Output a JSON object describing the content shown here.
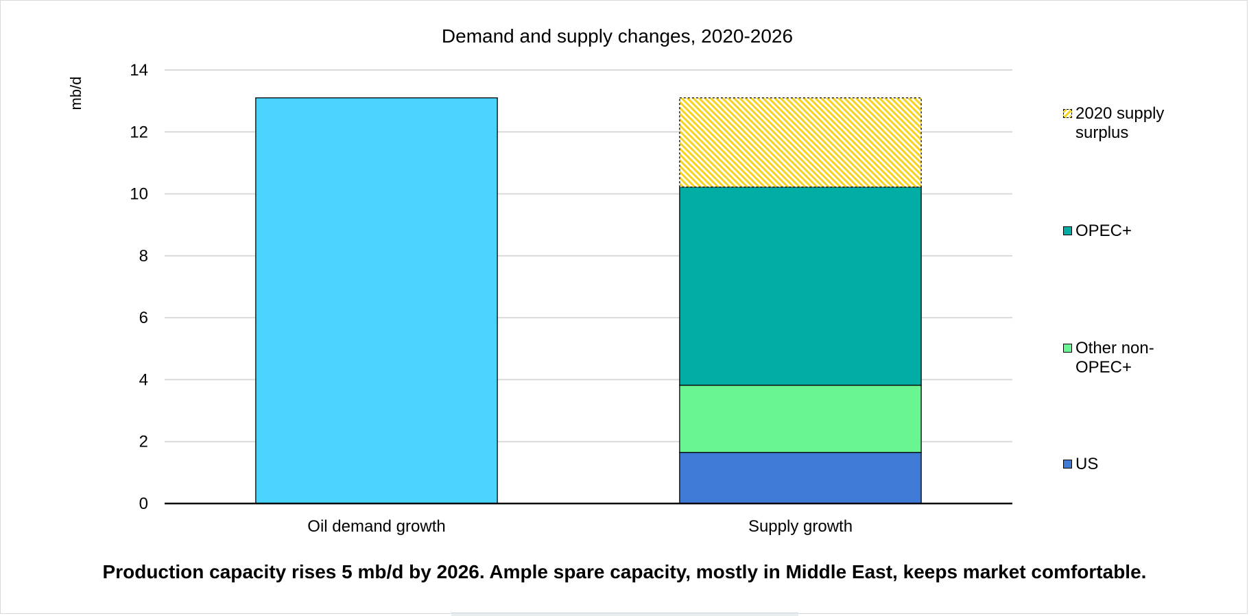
{
  "chart_data": {
    "type": "bar",
    "stacked": true,
    "title": "Demand and supply changes, 2020-2026",
    "ylabel": "mb/d",
    "xlabel": "",
    "ylim": [
      0,
      14
    ],
    "yticks": [
      0,
      2,
      4,
      6,
      8,
      10,
      12,
      14
    ],
    "categories": [
      "Oil demand growth",
      "Supply growth"
    ],
    "grid": true,
    "legend_position": "right",
    "series": [
      {
        "key": "demand",
        "values": [
          13.1,
          0
        ],
        "color": "#4ad3ff",
        "pattern": "solid"
      },
      {
        "name": "US",
        "values": [
          0,
          1.65
        ],
        "color": "#3f7ad6",
        "pattern": "solid"
      },
      {
        "name": "Other non-OPEC+",
        "values": [
          0,
          2.17
        ],
        "color": "#69f591",
        "pattern": "solid"
      },
      {
        "name": "OPEC+",
        "values": [
          0,
          6.4
        ],
        "color": "#00ada4",
        "pattern": "solid"
      },
      {
        "name": "2020 supply surplus",
        "values": [
          0,
          2.88
        ],
        "color": "#f5d327",
        "pattern": "hatched"
      }
    ]
  },
  "legend": {
    "items": [
      {
        "label": "2020 supply surplus",
        "color": "#f5d327",
        "pattern": "hatched"
      },
      {
        "label": "OPEC+",
        "color": "#00ada4",
        "pattern": "solid"
      },
      {
        "label": "Other non-OPEC+",
        "color": "#69f591",
        "pattern": "solid"
      },
      {
        "label": "US",
        "color": "#3f7ad6",
        "pattern": "solid"
      }
    ]
  },
  "caption": "Production capacity rises 5 mb/d by 2026. Ample spare capacity, mostly in Middle East, keeps market comfortable."
}
